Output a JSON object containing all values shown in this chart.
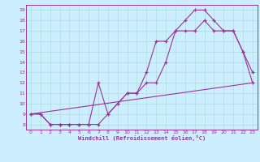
{
  "xlabel": "Windchill (Refroidissement éolien,°C)",
  "bg_color": "#cceeff",
  "line_color": "#993399",
  "grid_color": "#aadddd",
  "xlim": [
    -0.5,
    23.5
  ],
  "ylim": [
    7.5,
    19.5
  ],
  "yticks": [
    8,
    9,
    10,
    11,
    12,
    13,
    14,
    15,
    16,
    17,
    18,
    19
  ],
  "xticks": [
    0,
    1,
    2,
    3,
    4,
    5,
    6,
    7,
    8,
    9,
    10,
    11,
    12,
    13,
    14,
    15,
    16,
    17,
    18,
    19,
    20,
    21,
    22,
    23
  ],
  "series1_x": [
    0,
    1,
    2,
    3,
    4,
    5,
    6,
    7,
    8,
    9,
    10,
    11,
    12,
    13,
    14,
    15,
    16,
    17,
    18,
    19,
    20,
    21,
    22,
    23
  ],
  "series1_y": [
    9,
    9,
    8,
    8,
    8,
    8,
    8,
    12,
    9,
    10,
    11,
    11,
    13,
    16,
    16,
    17,
    18,
    19,
    19,
    18,
    17,
    17,
    15,
    13
  ],
  "series2_x": [
    0,
    1,
    2,
    3,
    4,
    5,
    6,
    7,
    8,
    9,
    10,
    11,
    12,
    13,
    14,
    15,
    16,
    17,
    18,
    19,
    20,
    21,
    22,
    23
  ],
  "series2_y": [
    9,
    9,
    8,
    8,
    8,
    8,
    8,
    8,
    9,
    10,
    11,
    11,
    12,
    12,
    14,
    17,
    17,
    17,
    18,
    17,
    17,
    17,
    15,
    12
  ],
  "series3_x": [
    0,
    23
  ],
  "series3_y": [
    9,
    12
  ]
}
